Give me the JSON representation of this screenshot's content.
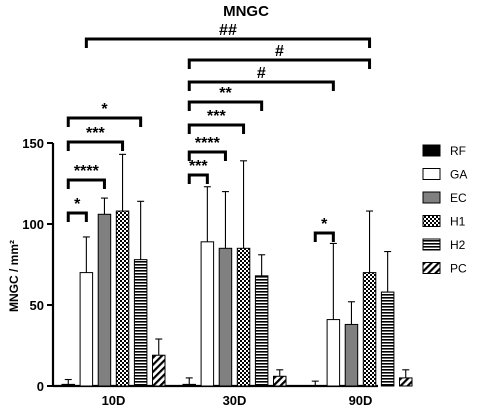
{
  "chart_data": {
    "type": "bar",
    "title": "MNGC",
    "ylabel": "MNGC / mm²",
    "xlabel": "",
    "ylim": [
      0,
      150
    ],
    "yticks": [
      "0",
      "50",
      "100",
      "150"
    ],
    "categories": [
      "10D",
      "30D",
      "90D"
    ],
    "legend_position": "right",
    "series": [
      {
        "name": "RF",
        "values": [
          1,
          1,
          0
        ],
        "errors": [
          3,
          4,
          3
        ],
        "pattern": "solid-black"
      },
      {
        "name": "GA",
        "values": [
          70,
          89,
          41
        ],
        "errors": [
          22,
          34,
          47
        ],
        "pattern": "white"
      },
      {
        "name": "EC",
        "values": [
          106,
          85,
          38
        ],
        "errors": [
          10,
          35,
          14
        ],
        "pattern": "gray"
      },
      {
        "name": "H1",
        "values": [
          108,
          85,
          70
        ],
        "errors": [
          35,
          54,
          38
        ],
        "pattern": "checker"
      },
      {
        "name": "H2",
        "values": [
          78,
          68,
          58
        ],
        "errors": [
          36,
          13,
          25
        ],
        "pattern": "horizontal-lines"
      },
      {
        "name": "PC",
        "values": [
          19,
          6,
          5
        ],
        "errors": [
          10,
          4,
          5
        ],
        "pattern": "diagonal"
      }
    ],
    "significance": [
      {
        "label": "*",
        "group": "10D",
        "from": "RF",
        "to": "GA"
      },
      {
        "label": "****",
        "group": "10D",
        "from": "RF",
        "to": "EC"
      },
      {
        "label": "***",
        "group": "10D",
        "from": "RF",
        "to": "H1"
      },
      {
        "label": "*",
        "group": "10D",
        "from": "RF",
        "to": "H2"
      },
      {
        "label": "***",
        "group": "30D",
        "from": "RF",
        "to": "GA"
      },
      {
        "label": "****",
        "group": "30D",
        "from": "RF",
        "to": "EC"
      },
      {
        "label": "***",
        "group": "30D",
        "from": "RF",
        "to": "H1"
      },
      {
        "label": "**",
        "group": "30D",
        "from": "RF",
        "to": "H2"
      },
      {
        "label": "*",
        "group": "90D",
        "from": "RF",
        "to": "GA"
      },
      {
        "label": "#",
        "group": "30D-90D",
        "from": "30D RF",
        "to": "90D GA"
      },
      {
        "label": "#",
        "group": "30D-90D",
        "from": "30D RF",
        "to": "90D H1"
      },
      {
        "label": "##",
        "group": "10D-90D",
        "from": "10D GA",
        "to": "90D H1"
      }
    ]
  }
}
